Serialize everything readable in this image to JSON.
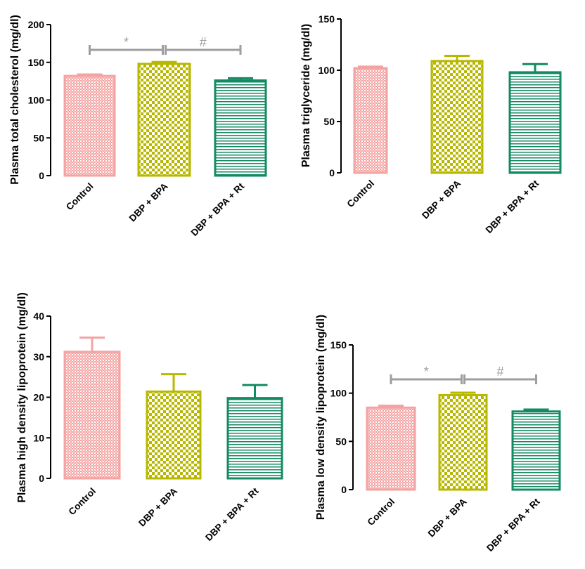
{
  "chart_data": [
    {
      "type": "bar",
      "ylabel": "Plasma total cholesterol (mg/dl)",
      "categories": [
        "Control",
        "DBP + BPA",
        "DBP + BPA + Rt"
      ],
      "values": [
        132,
        148,
        126
      ],
      "errors": [
        2,
        2.5,
        3
      ],
      "ylim": [
        0,
        200
      ],
      "yticks": [
        "0",
        "50",
        "100",
        "150",
        "200"
      ],
      "significance": [
        {
          "from": 0,
          "to": 1,
          "symbol": "*"
        },
        {
          "from": 1,
          "to": 2,
          "symbol": "#"
        }
      ]
    },
    {
      "type": "bar",
      "ylabel": "Plasma triglyceride (mg/dl)",
      "categories": [
        "Control",
        "DBP + BPA",
        "DBP + BPA + Rt"
      ],
      "values": [
        102,
        109,
        98
      ],
      "errors": [
        1.5,
        5,
        8
      ],
      "ylim": [
        0,
        150
      ],
      "yticks": [
        "0",
        "50",
        "100",
        "150"
      ],
      "significance": []
    },
    {
      "type": "bar",
      "ylabel": "Plasma high density lipoprotein (mg/dl)",
      "categories": [
        "Control",
        "DBP + BPA",
        "DBP + BPA + Rt"
      ],
      "values": [
        31.2,
        21.4,
        19.8
      ],
      "errors": [
        3.5,
        4.3,
        3.2
      ],
      "ylim": [
        0,
        40
      ],
      "yticks": [
        "0",
        "10",
        "20",
        "30",
        "40"
      ],
      "significance": []
    },
    {
      "type": "bar",
      "ylabel": "Plasma low density lipoprotein (mg/dl)",
      "categories": [
        "Control",
        "DBP + BPA",
        "DBP + BPA + Rt"
      ],
      "values": [
        85,
        98,
        81
      ],
      "errors": [
        2,
        2.5,
        2
      ],
      "ylim": [
        0,
        150
      ],
      "yticks": [
        "0",
        "50",
        "100",
        "150"
      ],
      "significance": [
        {
          "from": 0,
          "to": 1,
          "symbol": "*"
        },
        {
          "from": 1,
          "to": 2,
          "symbol": "#"
        }
      ]
    }
  ],
  "colors": {
    "control": "#f4a3a3",
    "dbp_bpa": "#b8b800",
    "dbp_bpa_rt": "#138a62",
    "significance": "#9e9e9e",
    "axis": "#000000"
  }
}
